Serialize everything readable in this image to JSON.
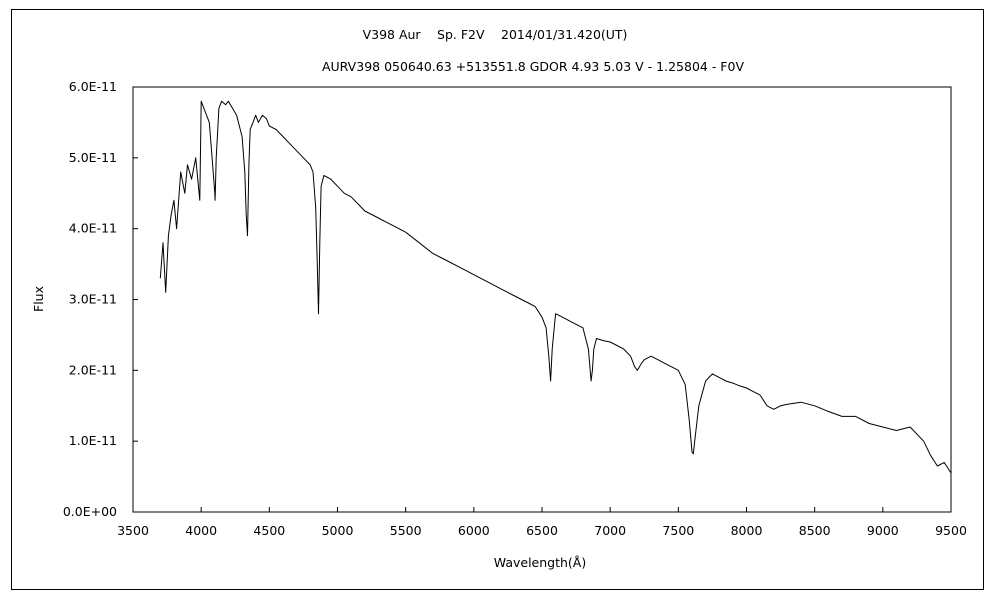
{
  "chart_data": {
    "type": "line",
    "title": "V398 Aur　 Sp. F2V　 2014/01/31.420(UT)",
    "subtitle": "AURV398 050640.63 +513551.8 GDOR 4.93 5.03 V - 1.25804 - F0V",
    "xlabel": "Wavelength(Å)",
    "ylabel": "Flux",
    "xlim": [
      3500,
      9500
    ],
    "ylim": [
      0,
      6e-11
    ],
    "x_ticks": [
      3500,
      4000,
      4500,
      5000,
      5500,
      6000,
      6500,
      7000,
      7500,
      8000,
      8500,
      9000,
      9500
    ],
    "x_tick_labels": [
      "3500",
      "4000",
      "4500",
      "5000",
      "5500",
      "6000",
      "6500",
      "7000",
      "7500",
      "8000",
      "8500",
      "9000",
      "9500"
    ],
    "y_ticks": [
      0,
      1e-11,
      2e-11,
      3e-11,
      4e-11,
      5e-11,
      6e-11
    ],
    "y_tick_labels": [
      "0.0E+00",
      "1.0E-11",
      "2.0E-11",
      "3.0E-11",
      "4.0E-11",
      "5.0E-11",
      "6.0E-11"
    ],
    "grid": false,
    "series": [
      {
        "x": [
          3700,
          3720,
          3740,
          3760,
          3780,
          3800,
          3820,
          3850,
          3880,
          3900,
          3930,
          3960,
          3990,
          4000,
          4020,
          4040,
          4060,
          4080,
          4100,
          4102,
          4110,
          4130,
          4150,
          4180,
          4200,
          4230,
          4260,
          4300,
          4320,
          4330,
          4340,
          4350,
          4360,
          4380,
          4400,
          4420,
          4450,
          4480,
          4500,
          4550,
          4600,
          4650,
          4700,
          4750,
          4800,
          4820,
          4840,
          4850,
          4861,
          4870,
          4880,
          4900,
          4950,
          5000,
          5050,
          5100,
          5150,
          5200,
          5250,
          5300,
          5350,
          5400,
          5500,
          5600,
          5700,
          5800,
          5900,
          6000,
          6100,
          6200,
          6300,
          6400,
          6450,
          6500,
          6530,
          6550,
          6563,
          6575,
          6600,
          6650,
          6700,
          6750,
          6800,
          6840,
          6860,
          6870,
          6880,
          6900,
          6950,
          7000,
          7050,
          7100,
          7150,
          7180,
          7200,
          7230,
          7250,
          7300,
          7350,
          7400,
          7450,
          7500,
          7550,
          7580,
          7600,
          7610,
          7620,
          7650,
          7700,
          7750,
          7800,
          7850,
          7900,
          7950,
          8000,
          8050,
          8100,
          8150,
          8200,
          8250,
          8300,
          8400,
          8500,
          8600,
          8700,
          8800,
          8900,
          9000,
          9100,
          9200,
          9300,
          9350,
          9400,
          9450,
          9500
        ],
        "y": [
          3.3e-11,
          3.8e-11,
          3.1e-11,
          3.9e-11,
          4.2e-11,
          4.4e-11,
          4e-11,
          4.8e-11,
          4.5e-11,
          4.9e-11,
          4.7e-11,
          5e-11,
          4.4e-11,
          5.8e-11,
          5.7e-11,
          5.6e-11,
          5.5e-11,
          5e-11,
          4.5e-11,
          4.4e-11,
          5e-11,
          5.7e-11,
          5.8e-11,
          5.75e-11,
          5.8e-11,
          5.7e-11,
          5.6e-11,
          5.3e-11,
          4.8e-11,
          4.2e-11,
          3.9e-11,
          4.9e-11,
          5.4e-11,
          5.5e-11,
          5.6e-11,
          5.5e-11,
          5.6e-11,
          5.55e-11,
          5.45e-11,
          5.4e-11,
          5.3e-11,
          5.2e-11,
          5.1e-11,
          5e-11,
          4.9e-11,
          4.8e-11,
          4.3e-11,
          3.6e-11,
          2.8e-11,
          3.8e-11,
          4.6e-11,
          4.75e-11,
          4.7e-11,
          4.6e-11,
          4.5e-11,
          4.45e-11,
          4.35e-11,
          4.25e-11,
          4.2e-11,
          4.15e-11,
          4.1e-11,
          4.05e-11,
          3.95e-11,
          3.8e-11,
          3.65e-11,
          3.55e-11,
          3.45e-11,
          3.35e-11,
          3.25e-11,
          3.15e-11,
          3.05e-11,
          2.95e-11,
          2.9e-11,
          2.75e-11,
          2.6e-11,
          2.2e-11,
          1.85e-11,
          2.3e-11,
          2.8e-11,
          2.75e-11,
          2.7e-11,
          2.65e-11,
          2.6e-11,
          2.3e-11,
          1.85e-11,
          2e-11,
          2.3e-11,
          2.45e-11,
          2.42e-11,
          2.4e-11,
          2.35e-11,
          2.3e-11,
          2.2e-11,
          2.05e-11,
          2e-11,
          2.1e-11,
          2.15e-11,
          2.2e-11,
          2.15e-11,
          2.1e-11,
          2.05e-11,
          2e-11,
          1.8e-11,
          1.3e-11,
          8.5e-12,
          8.2e-12,
          1e-11,
          1.5e-11,
          1.85e-11,
          1.95e-11,
          1.9e-11,
          1.85e-11,
          1.82e-11,
          1.78e-11,
          1.75e-11,
          1.7e-11,
          1.65e-11,
          1.5e-11,
          1.45e-11,
          1.5e-11,
          1.52e-11,
          1.55e-11,
          1.5e-11,
          1.42e-11,
          1.35e-11,
          1.35e-11,
          1.25e-11,
          1.2e-11,
          1.15e-11,
          1.2e-11,
          1e-11,
          8e-12,
          6.5e-12,
          7e-12,
          5.5e-12
        ]
      }
    ]
  }
}
